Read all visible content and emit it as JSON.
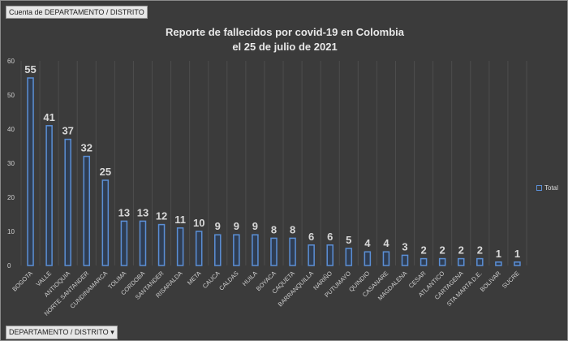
{
  "pivot": {
    "value_field": "Cuenta de DEPARTAMENTO  / DISTRITO",
    "axis_field": "DEPARTAMENTO  / DISTRITO",
    "dropdown_icon": "chevron-down-icon"
  },
  "colors": {
    "background": "#3b3b3b",
    "bar_stroke": "#5b8fd6",
    "bar_fill": "#2f3d52",
    "text": "#d8d8d8"
  },
  "chart_data": {
    "type": "bar",
    "title": "Reporte de fallecidos por covid-19 en Colombia",
    "subtitle": "el 25 de julio de 2021",
    "categories": [
      "BOGOTA",
      "VALLE",
      "ANTIOQUIA",
      "NORTE SANTANDER",
      "CUNDINAMARCA",
      "TOLIMA",
      "CORDOBA",
      "SANTANDER",
      "RISARALDA",
      "META",
      "CAUCA",
      "CALDAS",
      "HUILA",
      "BOYACA",
      "CAQUETA",
      "BARRANQUILLA",
      "NARIÑO",
      "PUTUMAYO",
      "QUINDIO",
      "CASANARE",
      "MAGDALENA",
      "CESAR",
      "ATLANTICO",
      "CARTAGENA",
      "STA MARTA D.E.",
      "BOLIVAR",
      "SUCRE"
    ],
    "series": [
      {
        "name": "Total",
        "values": [
          55,
          41,
          37,
          32,
          25,
          13,
          13,
          12,
          11,
          10,
          9,
          9,
          9,
          8,
          8,
          6,
          6,
          5,
          4,
          4,
          3,
          2,
          2,
          2,
          2,
          1,
          1
        ]
      }
    ],
    "ylim": [
      0,
      60
    ],
    "yticks": [
      "0",
      "10",
      "20",
      "30",
      "40",
      "50",
      "60"
    ],
    "data_labels": true,
    "legend": "right",
    "grid": "vertical category lines"
  }
}
